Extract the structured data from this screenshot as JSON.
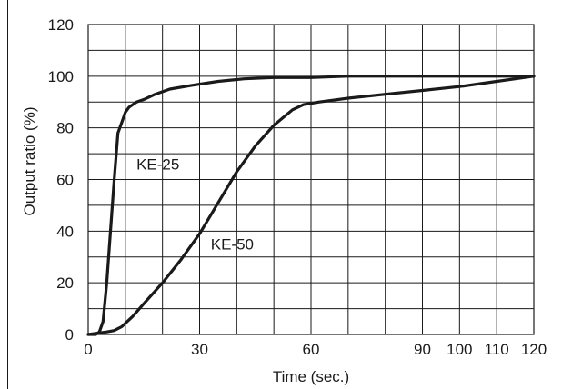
{
  "chart_data": {
    "type": "line",
    "title": "",
    "xlabel": "Time (sec.)",
    "ylabel": "Output ratio (%)",
    "xlim": [
      0,
      120
    ],
    "ylim": [
      0,
      120
    ],
    "x_ticks": [
      0,
      30,
      60,
      90,
      100,
      110,
      120
    ],
    "x_tick_labels": [
      "0",
      "30",
      "60",
      "90",
      "100",
      "110",
      "120"
    ],
    "x_grid": [
      0,
      10,
      20,
      30,
      40,
      50,
      60,
      70,
      80,
      90,
      100,
      110,
      120
    ],
    "y_ticks": [
      0,
      20,
      40,
      60,
      80,
      100,
      120
    ],
    "y_tick_labels": [
      "0",
      "20",
      "40",
      "60",
      "80",
      "100",
      "120"
    ],
    "y_grid": [
      0,
      10,
      20,
      30,
      40,
      50,
      60,
      70,
      80,
      90,
      100,
      110,
      120
    ],
    "grid": true,
    "legend": "none",
    "series": [
      {
        "name": "KE-25",
        "label_at": [
          13,
          66
        ],
        "points": [
          [
            0,
            0
          ],
          [
            2,
            0
          ],
          [
            3,
            1
          ],
          [
            4,
            5
          ],
          [
            5,
            20
          ],
          [
            6,
            40
          ],
          [
            7,
            60
          ],
          [
            8,
            78
          ],
          [
            9,
            82
          ],
          [
            10,
            86
          ],
          [
            11,
            88
          ],
          [
            12,
            89
          ],
          [
            13,
            90
          ],
          [
            15,
            91
          ],
          [
            18,
            93
          ],
          [
            22,
            95
          ],
          [
            28,
            96.5
          ],
          [
            35,
            98
          ],
          [
            42,
            99
          ],
          [
            50,
            99.5
          ],
          [
            60,
            99.5
          ],
          [
            70,
            100
          ],
          [
            80,
            100
          ],
          [
            90,
            100
          ],
          [
            100,
            100
          ],
          [
            110,
            100
          ],
          [
            120,
            100
          ]
        ]
      },
      {
        "name": "KE-50",
        "label_at": [
          33,
          35
        ],
        "points": [
          [
            0,
            0
          ],
          [
            5,
            1
          ],
          [
            7,
            1.5
          ],
          [
            9,
            3
          ],
          [
            12,
            7
          ],
          [
            15,
            12
          ],
          [
            20,
            20
          ],
          [
            25,
            29
          ],
          [
            30,
            39
          ],
          [
            35,
            51
          ],
          [
            40,
            63
          ],
          [
            45,
            73
          ],
          [
            50,
            81
          ],
          [
            55,
            87
          ],
          [
            58,
            89
          ],
          [
            62,
            90
          ],
          [
            70,
            91.5
          ],
          [
            80,
            93
          ],
          [
            90,
            94.5
          ],
          [
            100,
            96
          ],
          [
            110,
            98
          ],
          [
            115,
            99
          ],
          [
            120,
            100
          ]
        ]
      }
    ]
  }
}
